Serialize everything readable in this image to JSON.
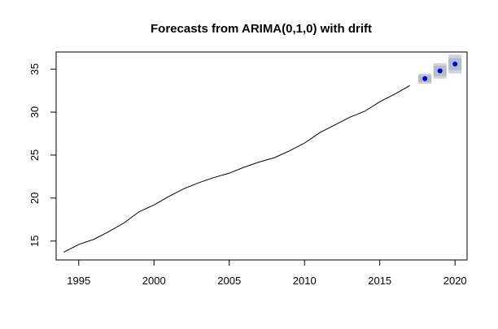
{
  "chart_data": {
    "type": "line",
    "title": "Forecasts from ARIMA(0,1,0) with drift",
    "xlabel": "",
    "ylabel": "",
    "xlim": [
      1993.5,
      2020.8
    ],
    "ylim": [
      12.8,
      37.0
    ],
    "x_ticks": [
      1995,
      2000,
      2005,
      2010,
      2015,
      2020
    ],
    "y_ticks": [
      15,
      20,
      25,
      30,
      35
    ],
    "grid": false,
    "colors": {
      "line": "#000000",
      "forecast_point": "#0000cc",
      "interval_outer": "#d0d2dd",
      "interval_inner": "#b6bacd"
    },
    "series": [
      {
        "x": [
          1994,
          1995,
          1996,
          1997,
          1998,
          1999,
          2000,
          2001,
          2002,
          2003,
          2004,
          2005,
          2006,
          2007,
          2008,
          2009,
          2010,
          2011,
          2012,
          2013,
          2014,
          2015,
          2016,
          2017
        ],
        "values": [
          13.7,
          14.6,
          15.2,
          16.1,
          17.1,
          18.4,
          19.2,
          20.2,
          21.1,
          21.8,
          22.4,
          22.9,
          23.6,
          24.2,
          24.7,
          25.5,
          26.4,
          27.6,
          28.5,
          29.4,
          30.1,
          31.2,
          32.1,
          33.1
        ]
      }
    ],
    "forecast": {
      "x": [
        2018,
        2019,
        2020
      ],
      "mean": [
        33.9,
        34.8,
        35.6
      ],
      "lower80": [
        33.5,
        34.2,
        34.9
      ],
      "upper80": [
        34.3,
        35.4,
        36.3
      ],
      "lower95": [
        33.3,
        33.9,
        34.5
      ],
      "upper95": [
        34.5,
        35.7,
        36.7
      ]
    }
  }
}
